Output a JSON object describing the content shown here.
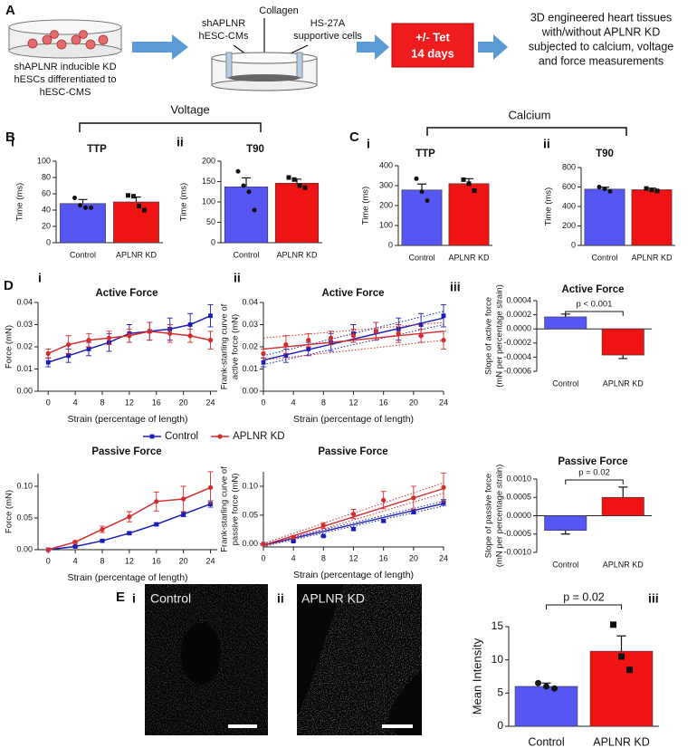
{
  "figure": {
    "panels": [
      "A",
      "B",
      "C",
      "D",
      "E"
    ],
    "groups": [
      "Voltage",
      "Calcium"
    ]
  },
  "schematic": {
    "dish_text": [
      "shAPLNR inducible KD",
      "hESCs differentiated to",
      "hESC-CMS"
    ],
    "inputs": [
      [
        "shAPLNR",
        "hESC-CMs"
      ],
      [
        "Collagen"
      ],
      [
        "HS-27A",
        "supportive cells"
      ]
    ],
    "treatment": [
      "+/- Tet",
      "14 days"
    ],
    "outcome": [
      "3D engineered heart tissues",
      "with/without APLNR KD",
      "subjected to calcium, voltage",
      "and force measurements"
    ]
  },
  "images": [
    {
      "label": "i",
      "caption": "Control"
    },
    {
      "label": "ii",
      "caption": "APLNR KD"
    }
  ],
  "chart_data": [
    {
      "type": "bar",
      "label": "i",
      "title": "TTP",
      "categories": [
        "Control",
        "APLNR KD"
      ],
      "values": [
        48,
        50
      ],
      "errors": [
        5,
        6
      ],
      "colors": [
        "#5656f2",
        "#ee1414"
      ],
      "points": [
        [
          55,
          46,
          43,
          43
        ],
        [
          58,
          57,
          45,
          40
        ]
      ],
      "y_label": [
        "Time (ms)"
      ],
      "ylim": [
        0,
        100
      ],
      "yticks": [
        0,
        20,
        40,
        60,
        80,
        100
      ]
    },
    {
      "type": "bar",
      "label": "ii",
      "title": "T90",
      "categories": [
        "Control",
        "APLNR KD"
      ],
      "values": [
        137,
        146
      ],
      "errors": [
        22,
        10
      ],
      "colors": [
        "#5656f2",
        "#ee1414"
      ],
      "points": [
        [
          175,
          140,
          125,
          80
        ],
        [
          160,
          155,
          140,
          135
        ]
      ],
      "y_label": [
        "Time (ms)"
      ],
      "ylim": [
        0,
        200
      ],
      "yticks": [
        0,
        50,
        100,
        150,
        200
      ]
    },
    {
      "type": "bar",
      "label": "i",
      "title": "TTP",
      "categories": [
        "Control",
        "APLNR KD"
      ],
      "values": [
        278,
        310
      ],
      "errors": [
        30,
        25
      ],
      "colors": [
        "#5656f2",
        "#ee1414"
      ],
      "points": [
        [
          335,
          270,
          225
        ],
        [
          330,
          310,
          275
        ]
      ],
      "y_label": [
        "Time (ms)"
      ],
      "ylim": [
        0,
        400
      ],
      "yticks": [
        0,
        100,
        200,
        300,
        400
      ]
    },
    {
      "type": "bar",
      "label": "ii",
      "title": "T90",
      "categories": [
        "Control",
        "APLNR KD"
      ],
      "values": [
        578,
        572
      ],
      "errors": [
        20,
        15
      ],
      "colors": [
        "#5656f2",
        "#ee1414"
      ],
      "points": [
        [
          600,
          580,
          555
        ],
        [
          585,
          570,
          560
        ]
      ],
      "y_label": [
        "Time (ms)"
      ],
      "ylim": [
        0,
        800
      ],
      "yticks": [
        0,
        200,
        400,
        600,
        800
      ]
    },
    {
      "type": "line",
      "label": "i",
      "title": "Active Force",
      "x_label": "Strain (percentage of length)",
      "y_label": [
        "Force (mN)"
      ],
      "x": [
        0,
        3,
        6,
        9,
        12,
        15,
        18,
        21,
        24
      ],
      "xlim": [
        -1.5,
        25
      ],
      "xticks": [
        0,
        4,
        8,
        12,
        16,
        20,
        24
      ],
      "ylim": [
        0,
        0.04
      ],
      "yticks": [
        {
          "value": 0,
          "label": "0.00"
        },
        0.01,
        0.02,
        0.03,
        0.04
      ],
      "series": [
        {
          "name": "Control",
          "color": "#1c1cb8",
          "values": [
            0.013,
            0.016,
            0.019,
            0.022,
            0.026,
            0.027,
            0.028,
            0.03,
            0.034
          ],
          "errors": [
            0.002,
            0.003,
            0.003,
            0.004,
            0.004,
            0.004,
            0.005,
            0.005,
            0.005
          ]
        },
        {
          "name": "APLNR KD",
          "color": "#d22c2c",
          "values": [
            0.017,
            0.021,
            0.023,
            0.024,
            0.025,
            0.027,
            0.026,
            0.025,
            0.023
          ],
          "errors": [
            0.002,
            0.004,
            0.003,
            0.003,
            0.003,
            0.004,
            0.004,
            0.003,
            0.004
          ]
        }
      ]
    },
    {
      "type": "line",
      "label": "ii",
      "title": "Active Force",
      "x_label": "Strain (percentage of length)",
      "y_label": [
        "Frank-starling curve of",
        "active force (mN)"
      ],
      "x": [
        0,
        3,
        6,
        9,
        12,
        15,
        18,
        21,
        24
      ],
      "xlim": [
        0,
        24
      ],
      "xticks": [
        0,
        4,
        8,
        12,
        16,
        20,
        24
      ],
      "ylim": [
        0,
        0.04
      ],
      "yticks": [
        {
          "value": 0,
          "label": "0.00"
        },
        0.01,
        0.02,
        0.03,
        0.04
      ],
      "series": [
        {
          "color": "#1c1cb8",
          "values": [
            0.013,
            0.016,
            0.019,
            0.022,
            0.026,
            0.027,
            0.028,
            0.03,
            0.034
          ],
          "errors": [
            0.002,
            0.003,
            0.003,
            0.004,
            0.004,
            0.004,
            0.005,
            0.005,
            0.005
          ],
          "fit": [
            0.014,
            0.033
          ],
          "fit_ci": [
            [
              0.012,
              0.016
            ],
            [
              0.03,
              0.036
            ]
          ]
        },
        {
          "color": "#d22c2c",
          "values": [
            0.017,
            0.021,
            0.023,
            0.024,
            0.025,
            0.027,
            0.026,
            0.025,
            0.023
          ],
          "errors": [
            0.002,
            0.004,
            0.003,
            0.003,
            0.003,
            0.004,
            0.004,
            0.003,
            0.004
          ],
          "fit": [
            0.019,
            0.027
          ],
          "fit_ci": [
            [
              0.014,
              0.024
            ],
            [
              0.023,
              0.031
            ]
          ]
        }
      ]
    },
    {
      "type": "bar",
      "label": "iii",
      "title": "Active Force",
      "categories": [
        "Control",
        "APLNR KD"
      ],
      "values": [
        0.00017,
        -0.00037
      ],
      "errors": [
        4e-05,
        5e-05
      ],
      "colors": [
        "#5656f2",
        "#ee1414"
      ],
      "y_label": [
        "Slope of active force",
        "(mN per percentage strain)"
      ],
      "annotation": "p < 0.001",
      "ylim": [
        -0.0006,
        0.0004
      ],
      "yticks": [
        -0.0006,
        -0.0004,
        -0.0002,
        {
          "value": 0,
          "label": "0.0000"
        },
        0.0002,
        0.0004
      ]
    },
    {
      "type": "line",
      "title": "Passive Force",
      "x_label": "Strain (percentage of length)",
      "y_label": [
        "Force (mN)"
      ],
      "x": [
        0,
        4,
        8,
        12,
        16,
        20,
        24
      ],
      "xlim": [
        -1.5,
        25
      ],
      "xticks": [
        0,
        4,
        8,
        12,
        16,
        20,
        24
      ],
      "ylim": [
        0,
        0.12
      ],
      "yticks": [
        {
          "value": 0,
          "label": "0.00"
        },
        0.05,
        {
          "value": 0.1,
          "label": "0.10"
        }
      ],
      "series": [
        {
          "color": "#1c1cb8",
          "values": [
            0,
            0.005,
            0.014,
            0.026,
            0.04,
            0.056,
            0.072
          ],
          "errors": [
            0,
            0.001,
            0.001,
            0.002,
            0.002,
            0.004,
            0.005
          ]
        },
        {
          "color": "#d22c2c",
          "values": [
            0,
            0.012,
            0.032,
            0.052,
            0.076,
            0.08,
            0.098
          ],
          "errors": [
            0,
            0.002,
            0.005,
            0.008,
            0.015,
            0.02,
            0.025
          ]
        }
      ]
    },
    {
      "type": "line",
      "title": "Passive Force",
      "x_label": "Strain (percentage of length)",
      "y_label": [
        "Frank-starling curve of",
        "passive force (mN)"
      ],
      "x": [
        0,
        4,
        8,
        12,
        16,
        20,
        24
      ],
      "xlim": [
        0,
        24
      ],
      "xticks": [
        0,
        4,
        8,
        12,
        16,
        20,
        24
      ],
      "ylim": [
        -0.005,
        0.125
      ],
      "yticks": [
        {
          "value": 0,
          "label": "0.00"
        },
        0.05,
        {
          "value": 0.1,
          "label": "0.10"
        }
      ],
      "series": [
        {
          "color": "#1c1cb8",
          "values": [
            0,
            0.005,
            0.014,
            0.026,
            0.04,
            0.056,
            0.072
          ],
          "errors": [
            0,
            0.001,
            0.001,
            0.002,
            0.002,
            0.004,
            0.005
          ],
          "fit": [
            -0.002,
            0.07
          ],
          "fit_ci": [
            [
              -0.004,
              0
            ],
            [
              0.066,
              0.074
            ]
          ]
        },
        {
          "color": "#d22c2c",
          "values": [
            0,
            0.012,
            0.032,
            0.052,
            0.076,
            0.08,
            0.098
          ],
          "errors": [
            0,
            0.002,
            0.005,
            0.008,
            0.015,
            0.02,
            0.025
          ],
          "fit": [
            -0.002,
            0.096
          ],
          "fit_ci": [
            [
              -0.005,
              0.001
            ],
            [
              0.088,
              0.106
            ]
          ]
        }
      ]
    },
    {
      "type": "bar",
      "title": "Passive Force",
      "categories": [
        "Control",
        "APLNR KD"
      ],
      "values": [
        -0.0004,
        0.0005
      ],
      "errors": [
        0.0001,
        0.00028
      ],
      "colors": [
        "#5656f2",
        "#ee1414"
      ],
      "y_label": [
        "Slope of passive force",
        "(mN per percentage strain)"
      ],
      "annotation": "p = 0.02",
      "ylim": [
        -0.001,
        0.001
      ],
      "yticks": [
        {
          "value": -0.001,
          "label": "-0.0010"
        },
        -0.0005,
        {
          "value": 0,
          "label": "0.0000"
        },
        0.0005,
        {
          "value": 0.001,
          "label": "0.0010"
        }
      ]
    },
    {
      "type": "bar",
      "label": "iii",
      "categories": [
        "Control",
        "APLNR KD"
      ],
      "values": [
        6,
        11.3
      ],
      "errors": [
        0.5,
        2.3
      ],
      "colors": [
        "#5656f2",
        "#ee1414"
      ],
      "points": [
        [
          6.5,
          6,
          5.7
        ],
        [
          15.3,
          10.5,
          8.5
        ]
      ],
      "y_label": [
        "Mean Intensity"
      ],
      "annotation": "p = 0.02",
      "ylim": [
        0,
        15
      ],
      "yticks": [
        0,
        5,
        10,
        15
      ]
    }
  ]
}
